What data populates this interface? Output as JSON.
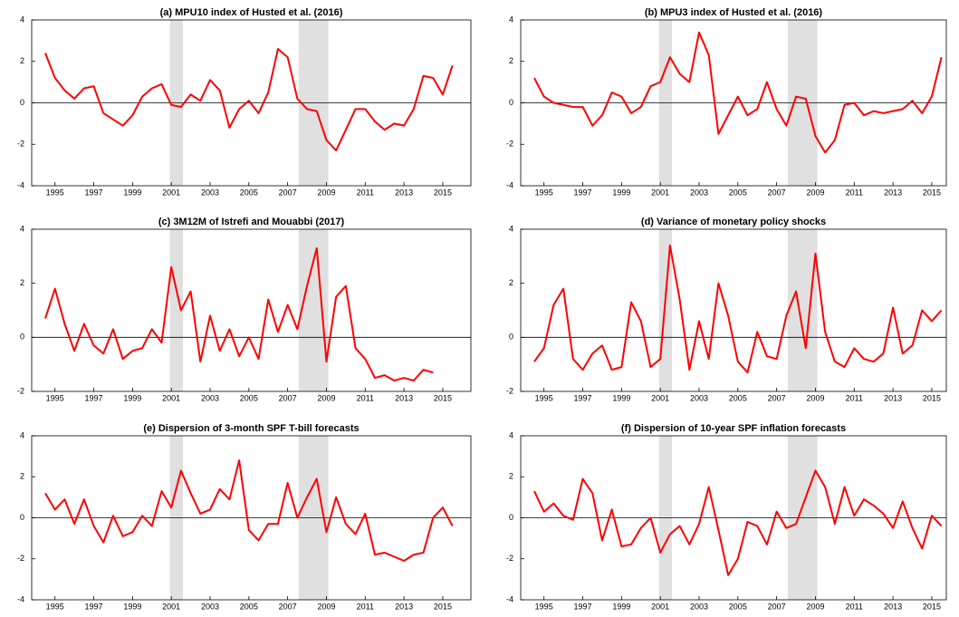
{
  "chart_data": [
    {
      "type": "line",
      "title": "(a) MPU10 index of Husted et al. (2016)",
      "x": [
        1994.5,
        1995,
        1995.5,
        1996,
        1996.5,
        1997,
        1997.5,
        1998,
        1998.5,
        1999,
        1999.5,
        2000,
        2000.5,
        2001,
        2001.5,
        2002,
        2002.5,
        2003,
        2003.5,
        2004,
        2004.5,
        2005,
        2005.5,
        2006,
        2006.5,
        2007,
        2007.5,
        2008,
        2008.5,
        2009,
        2009.5,
        2010,
        2010.5,
        2011,
        2011.5,
        2012,
        2012.5,
        2013,
        2013.5,
        2014,
        2014.5,
        2015,
        2015.5
      ],
      "series": [
        {
          "color": "#ff0000",
          "values": [
            2.4,
            1.2,
            0.6,
            0.2,
            0.7,
            0.8,
            -0.5,
            -0.8,
            -1.1,
            -0.6,
            0.3,
            0.7,
            0.9,
            -0.1,
            -0.2,
            0.4,
            0.1,
            1.1,
            0.6,
            -1.2,
            -0.3,
            0.1,
            -0.5,
            0.5,
            2.6,
            2.2,
            0.2,
            -0.3,
            -0.4,
            -1.8,
            -2.3,
            -1.3,
            -0.3,
            -0.3,
            -0.9,
            -1.3,
            -1.0,
            -1.1,
            -0.3,
            1.3,
            1.2,
            0.4,
            1.8
          ]
        }
      ],
      "xlim": [
        1993.8,
        2016.45
      ],
      "xticks": [
        1995,
        1997,
        1999,
        2001,
        2003,
        2005,
        2007,
        2009,
        2011,
        2013,
        2015
      ],
      "ylim": [
        -4,
        4
      ],
      "yticks": [
        -4,
        -2,
        0,
        2,
        4
      ],
      "shaded": [
        [
          2000.93,
          2001.6
        ],
        [
          2007.57,
          2009.1
        ]
      ]
    },
    {
      "type": "line",
      "title": "(b) MPU3 index of Husted et al. (2016)",
      "x": [
        1994.5,
        1995,
        1995.5,
        1996,
        1996.5,
        1997,
        1997.5,
        1998,
        1998.5,
        1999,
        1999.5,
        2000,
        2000.5,
        2001,
        2001.5,
        2002,
        2002.5,
        2003,
        2003.5,
        2004,
        2004.5,
        2005,
        2005.5,
        2006,
        2006.5,
        2007,
        2007.5,
        2008,
        2008.5,
        2009,
        2009.5,
        2010,
        2010.5,
        2011,
        2011.5,
        2012,
        2012.5,
        2013,
        2013.5,
        2014,
        2014.5,
        2015,
        2015.5
      ],
      "series": [
        {
          "color": "#ff0000",
          "values": [
            1.2,
            0.3,
            0,
            -0.1,
            -0.2,
            -0.2,
            -1.1,
            -0.6,
            0.5,
            0.3,
            -0.5,
            -0.2,
            0.8,
            1.0,
            2.2,
            1.4,
            1.0,
            3.4,
            2.3,
            -1.5,
            -0.6,
            0.3,
            -0.6,
            -0.3,
            1.0,
            -0.3,
            -1.1,
            0.3,
            0.2,
            -1.6,
            -2.4,
            -1.8,
            -0.1,
            0.0,
            -0.6,
            -0.4,
            -0.5,
            -0.4,
            -0.3,
            0.1,
            -0.5,
            0.3,
            2.2
          ]
        }
      ],
      "xlim": [
        1993.8,
        2015.75
      ],
      "xticks": [
        1995,
        1997,
        1999,
        2001,
        2003,
        2005,
        2007,
        2009,
        2011,
        2013,
        2015
      ],
      "ylim": [
        -4,
        4
      ],
      "yticks": [
        -4,
        -2,
        0,
        2,
        4
      ],
      "shaded": [
        [
          2000.93,
          2001.6
        ],
        [
          2007.57,
          2009.1
        ]
      ]
    },
    {
      "type": "line",
      "title": "(c) 3M12M of Istrefi and Mouabbi (2017)",
      "x": [
        1994.5,
        1995,
        1995.5,
        1996,
        1996.5,
        1997,
        1997.5,
        1998,
        1998.5,
        1999,
        1999.5,
        2000,
        2000.5,
        2001,
        2001.5,
        2002,
        2002.5,
        2003,
        2003.5,
        2004,
        2004.5,
        2005,
        2005.5,
        2006,
        2006.5,
        2007,
        2007.5,
        2008,
        2008.5,
        2009,
        2009.5,
        2010,
        2010.5,
        2011,
        2011.5,
        2012,
        2012.5,
        2013,
        2013.5,
        2014,
        2014.5
      ],
      "series": [
        {
          "color": "#ff0000",
          "values": [
            0.7,
            1.8,
            0.5,
            -0.5,
            0.5,
            -0.3,
            -0.6,
            0.3,
            -0.8,
            -0.5,
            -0.4,
            0.3,
            -0.2,
            2.6,
            1.0,
            1.7,
            -0.9,
            0.8,
            -0.5,
            0.3,
            -0.7,
            0.0,
            -0.8,
            1.4,
            0.2,
            1.2,
            0.3,
            1.9,
            3.3,
            -0.9,
            1.5,
            1.9,
            -0.4,
            -0.8,
            -1.5,
            -1.4,
            -1.6,
            -1.5,
            -1.6,
            -1.2,
            -1.3
          ]
        }
      ],
      "xlim": [
        1993.8,
        2016.45
      ],
      "xticks": [
        1995,
        1997,
        1999,
        2001,
        2003,
        2005,
        2007,
        2009,
        2011,
        2013,
        2015
      ],
      "ylim": [
        -2,
        4
      ],
      "yticks": [
        -2,
        0,
        2,
        4
      ],
      "shaded": [
        [
          2000.93,
          2001.6
        ],
        [
          2007.57,
          2009.1
        ]
      ]
    },
    {
      "type": "line",
      "title": "(d) Variance of monetary policy shocks",
      "x": [
        1994.5,
        1995,
        1995.5,
        1996,
        1996.5,
        1997,
        1997.5,
        1998,
        1998.5,
        1999,
        1999.5,
        2000,
        2000.5,
        2001,
        2001.5,
        2002,
        2002.5,
        2003,
        2003.5,
        2004,
        2004.5,
        2005,
        2005.5,
        2006,
        2006.5,
        2007,
        2007.5,
        2008,
        2008.5,
        2009,
        2009.5,
        2010,
        2010.5,
        2011,
        2011.5,
        2012,
        2012.5,
        2013,
        2013.5,
        2014,
        2014.5,
        2015,
        2015.5
      ],
      "series": [
        {
          "color": "#ff0000",
          "values": [
            -0.9,
            -0.4,
            1.2,
            1.8,
            -0.8,
            -1.2,
            -0.6,
            -0.3,
            -1.2,
            -1.1,
            1.3,
            0.6,
            -1.1,
            -0.8,
            3.4,
            1.4,
            -1.2,
            0.6,
            -0.8,
            2.0,
            0.8,
            -0.9,
            -1.3,
            0.2,
            -0.7,
            -0.8,
            0.8,
            1.7,
            -0.4,
            3.1,
            0.2,
            -0.9,
            -1.1,
            -0.4,
            -0.8,
            -0.9,
            -0.6,
            1.1,
            -0.6,
            -0.3,
            1.0,
            0.6,
            1.0
          ]
        }
      ],
      "xlim": [
        1993.8,
        2015.75
      ],
      "xticks": [
        1995,
        1997,
        1999,
        2001,
        2003,
        2005,
        2007,
        2009,
        2011,
        2013,
        2015
      ],
      "ylim": [
        -2,
        4
      ],
      "yticks": [
        -2,
        0,
        2,
        4
      ],
      "shaded": [
        [
          2000.93,
          2001.6
        ],
        [
          2007.57,
          2009.1
        ]
      ]
    },
    {
      "type": "line",
      "title": "(e) Dispersion of 3-month SPF T-bill forecasts",
      "x": [
        1994.5,
        1995,
        1995.5,
        1996,
        1996.5,
        1997,
        1997.5,
        1998,
        1998.5,
        1999,
        1999.5,
        2000,
        2000.5,
        2001,
        2001.5,
        2002,
        2002.5,
        2003,
        2003.5,
        2004,
        2004.5,
        2005,
        2005.5,
        2006,
        2006.5,
        2007,
        2007.5,
        2008,
        2008.5,
        2009,
        2009.5,
        2010,
        2010.5,
        2011,
        2011.5,
        2012,
        2012.5,
        2013,
        2013.5,
        2014,
        2014.5,
        2015,
        2015.5
      ],
      "series": [
        {
          "color": "#ff0000",
          "values": [
            1.2,
            0.4,
            0.9,
            -0.3,
            0.9,
            -0.4,
            -1.2,
            0.1,
            -0.9,
            -0.7,
            0.1,
            -0.4,
            1.3,
            0.5,
            2.3,
            1.2,
            0.2,
            0.4,
            1.4,
            0.9,
            2.8,
            -0.6,
            -1.1,
            -0.3,
            -0.3,
            1.7,
            0.0,
            1.0,
            1.9,
            -0.7,
            1.0,
            -0.3,
            -0.8,
            0.2,
            -1.8,
            -1.7,
            -1.9,
            -2.1,
            -1.8,
            -1.7,
            0.0,
            0.5,
            -0.4
          ]
        }
      ],
      "xlim": [
        1993.8,
        2016.45
      ],
      "xticks": [
        1995,
        1997,
        1999,
        2001,
        2003,
        2005,
        2007,
        2009,
        2011,
        2013,
        2015
      ],
      "ylim": [
        -4,
        4
      ],
      "yticks": [
        -4,
        -2,
        0,
        2,
        4
      ],
      "shaded": [
        [
          2000.93,
          2001.6
        ],
        [
          2007.57,
          2009.1
        ]
      ]
    },
    {
      "type": "line",
      "title": "(f) Dispersion of 10-year SPF inflation forecasts",
      "x": [
        1994.5,
        1995,
        1995.5,
        1996,
        1996.5,
        1997,
        1997.5,
        1998,
        1998.5,
        1999,
        1999.5,
        2000,
        2000.5,
        2001,
        2001.5,
        2002,
        2002.5,
        2003,
        2003.5,
        2004,
        2004.5,
        2005,
        2005.5,
        2006,
        2006.5,
        2007,
        2007.5,
        2008,
        2008.5,
        2009,
        2009.5,
        2010,
        2010.5,
        2011,
        2011.5,
        2012,
        2012.5,
        2013,
        2013.5,
        2014,
        2014.5,
        2015,
        2015.5
      ],
      "series": [
        {
          "color": "#ff0000",
          "values": [
            1.3,
            0.3,
            0.7,
            0.1,
            -0.1,
            1.9,
            1.2,
            -1.1,
            0.4,
            -1.4,
            -1.3,
            -0.5,
            0.0,
            -1.7,
            -0.8,
            -0.4,
            -1.3,
            -0.3,
            1.5,
            -0.6,
            -2.8,
            -2.0,
            -0.2,
            -0.4,
            -1.3,
            0.3,
            -0.5,
            -0.3,
            1.0,
            2.3,
            1.5,
            -0.3,
            1.5,
            0.1,
            0.9,
            0.6,
            0.2,
            -0.5,
            0.8,
            -0.5,
            -1.5,
            0.1,
            -0.4
          ]
        }
      ],
      "xlim": [
        1993.8,
        2015.75
      ],
      "xticks": [
        1995,
        1997,
        1999,
        2001,
        2003,
        2005,
        2007,
        2009,
        2011,
        2013,
        2015
      ],
      "ylim": [
        -4,
        4
      ],
      "yticks": [
        -4,
        -2,
        0,
        2,
        4
      ],
      "shaded": [
        [
          2000.93,
          2001.6
        ],
        [
          2007.57,
          2009.1
        ]
      ]
    }
  ]
}
